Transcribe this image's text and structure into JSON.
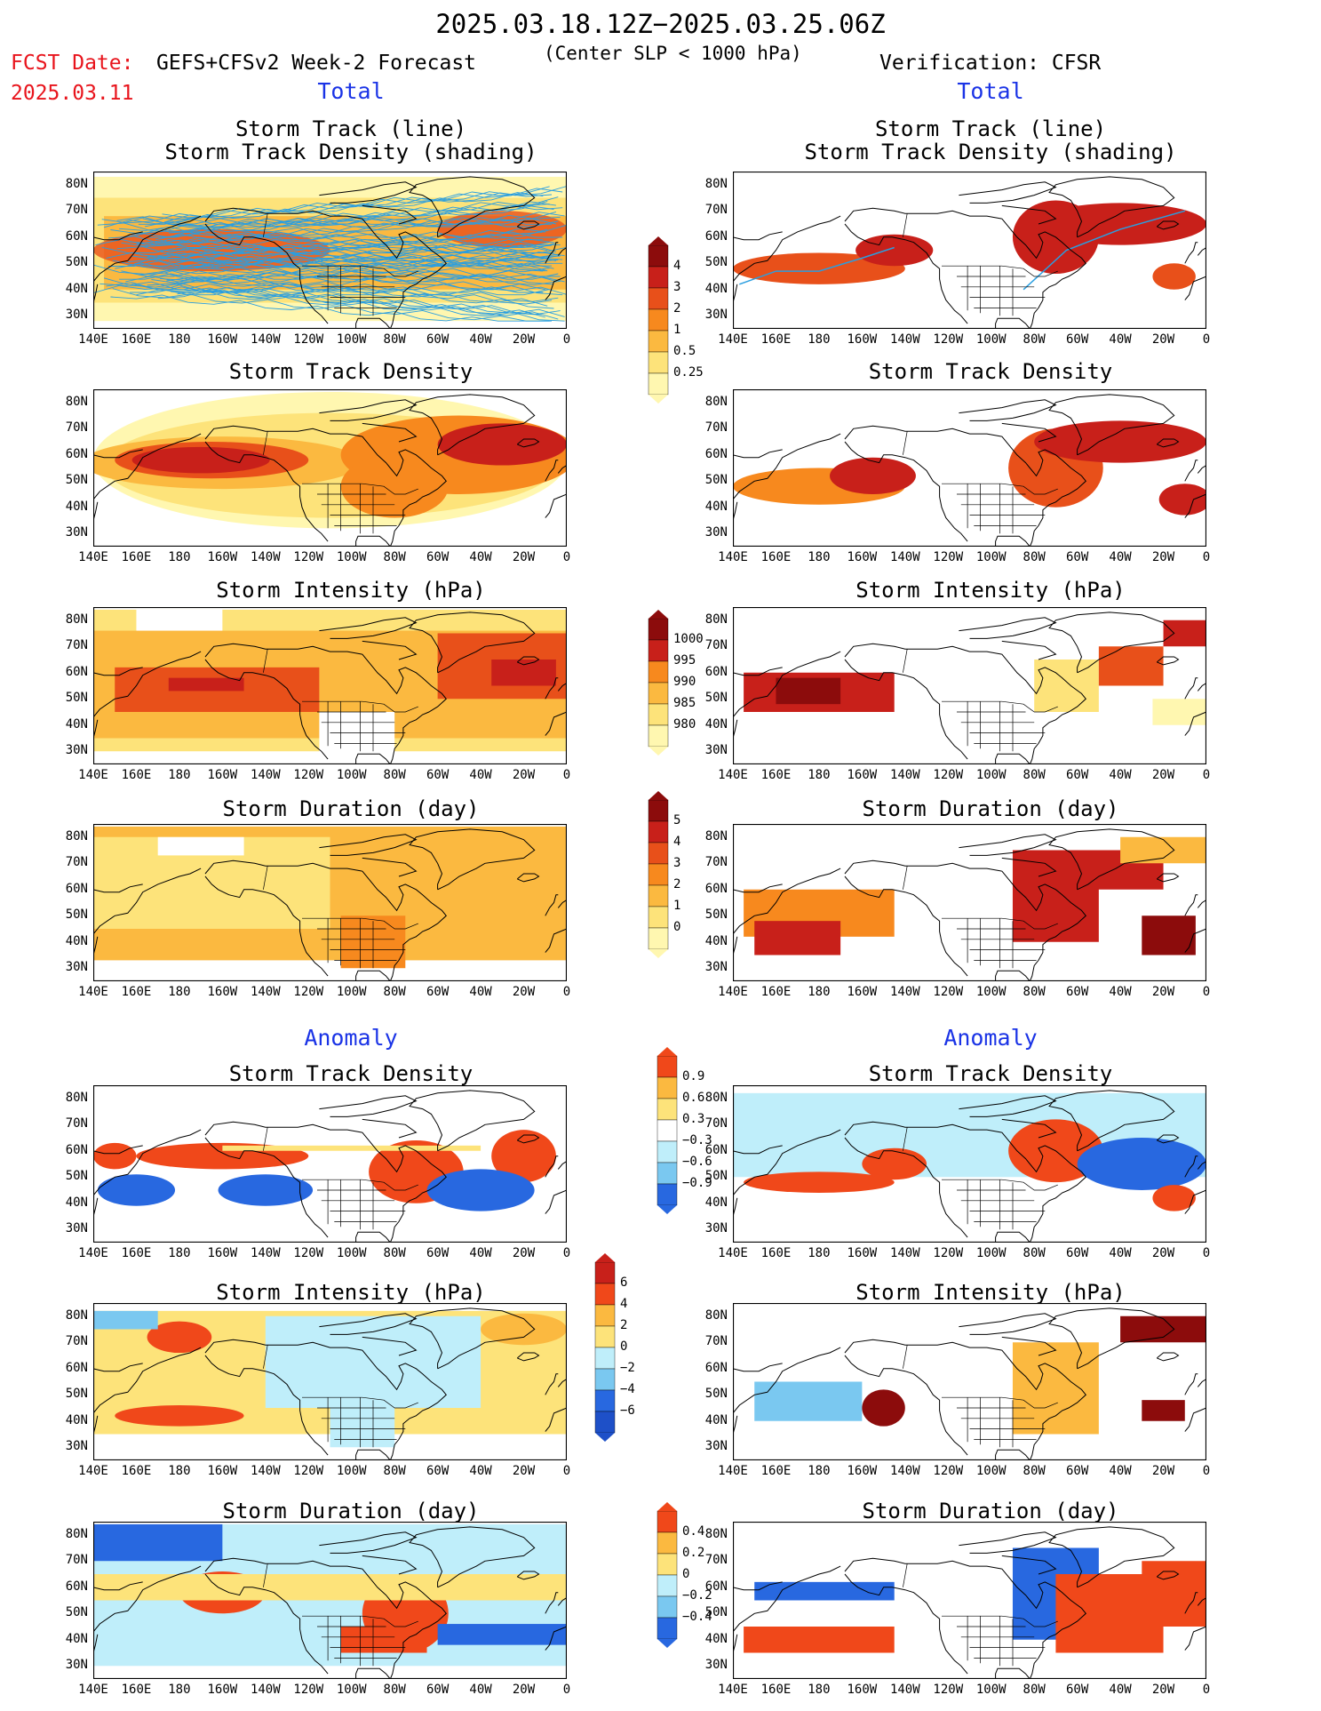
{
  "header": {
    "title": "2025.03.18.12Z−2025.03.25.06Z",
    "fcst_label": "FCST Date:",
    "fcst_date": "2025.03.11",
    "forecast_label": "GEFS+CFSv2 Week-2 Forecast",
    "slp_note": "(Center SLP < 1000 hPa)",
    "verification": "Verification: CFSR"
  },
  "sections": {
    "total": "Total",
    "anomaly": "Anomaly"
  },
  "panel_titles": {
    "track_line": "Storm Track (line)",
    "track_shade": "Storm Track Density (shading)",
    "density": "Storm Track Density",
    "intensity": "Storm Intensity (hPa)",
    "duration": "Storm Duration (day)"
  },
  "lat_labels": [
    "80N",
    "70N",
    "60N",
    "50N",
    "40N",
    "30N"
  ],
  "lon_labels": [
    "140E",
    "160E",
    "180",
    "160W",
    "140W",
    "120W",
    "100W",
    "80W",
    "60W",
    "40W",
    "20W",
    "0"
  ],
  "colorbars": {
    "density": [
      "4",
      "3",
      "2",
      "1",
      "0.5",
      "0.25"
    ],
    "intensity": [
      "1000",
      "995",
      "990",
      "985",
      "980"
    ],
    "duration": [
      "5",
      "4",
      "3",
      "2",
      "1",
      "0"
    ],
    "density_anom": [
      "0.9",
      "0.6",
      "0.3",
      "−0.3",
      "−0.6",
      "−0.9"
    ],
    "intensity_anom": [
      "6",
      "4",
      "2",
      "0",
      "−2",
      "−4",
      "−6"
    ],
    "duration_anom": [
      "0.4",
      "0.2",
      "0",
      "−0.2",
      "−0.4"
    ]
  },
  "palette": {
    "warm": [
      "#fff7b0",
      "#fde37a",
      "#fbb940",
      "#f7891e",
      "#e8501a",
      "#c8201a",
      "#8c0c0c"
    ],
    "anom_warm": [
      "#fde37a",
      "#fbb940",
      "#f0481a"
    ],
    "anom_cool": [
      "#bfeefa",
      "#7ac8f0",
      "#2868e0"
    ],
    "track_line": "#2a9ee0",
    "title_red": "#e8141c",
    "section_blue": "#1a33e6"
  }
}
